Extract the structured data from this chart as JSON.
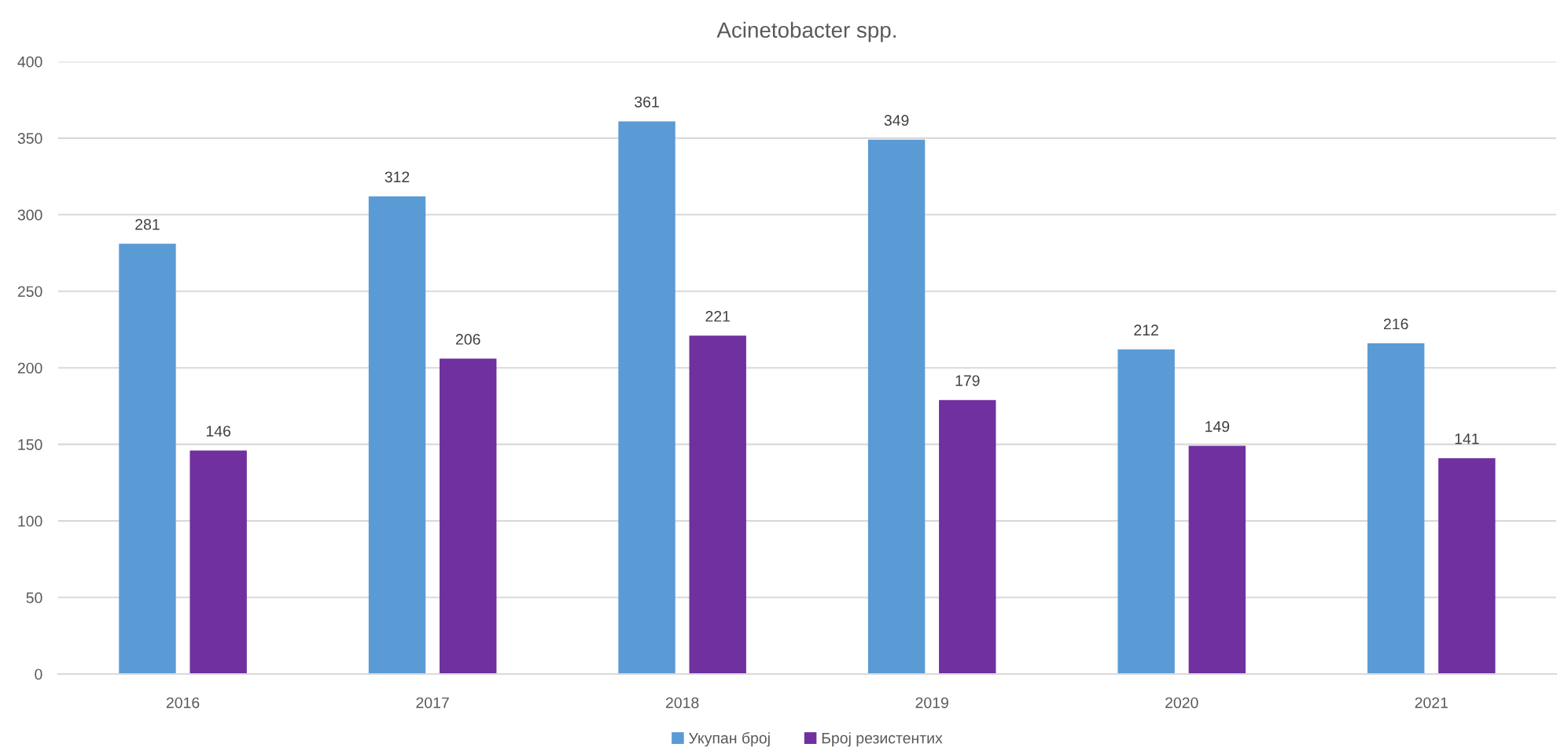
{
  "chart_data": {
    "type": "bar",
    "title": "Acinetobacter spp.",
    "categories": [
      "2016",
      "2017",
      "2018",
      "2019",
      "2020",
      "2021"
    ],
    "series": [
      {
        "name": "Укупан број",
        "color": "#5b9bd5",
        "values": [
          281,
          312,
          361,
          349,
          212,
          216
        ]
      },
      {
        "name": "Број резистентих",
        "color": "#7030a0",
        "values": [
          146,
          206,
          221,
          179,
          149,
          141
        ]
      }
    ],
    "ylim": [
      0,
      400
    ],
    "yticks": [
      0,
      50,
      100,
      150,
      200,
      250,
      300,
      350,
      400
    ],
    "grid": "y",
    "legend": "bottom",
    "data_labels": true
  }
}
